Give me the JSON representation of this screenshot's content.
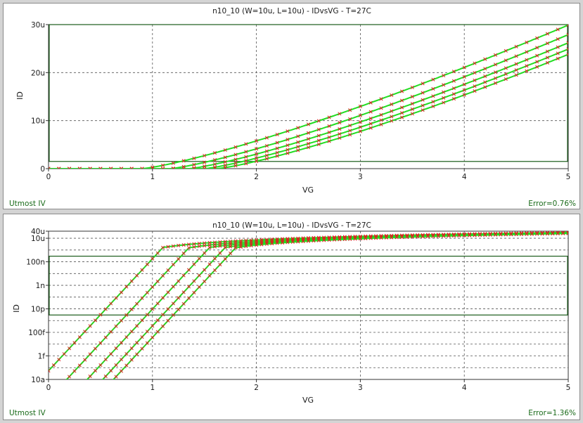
{
  "colors": {
    "fit_curve": "#22dd22",
    "measured_marker": "#dd2222",
    "frame": "#1a5c1a",
    "grid": "#555555",
    "corner_text": "#1a6b1a"
  },
  "chart_data": [
    {
      "type": "line",
      "title": "n10_10 (W=10u, L=10u) - IDvsVG - T=27C",
      "xlabel": "VG",
      "ylabel": "ID",
      "xlim": [
        0,
        5
      ],
      "ylim": [
        0,
        3e-05
      ],
      "y_scale": "linear",
      "x_ticks": [
        "0",
        "1",
        "2",
        "3",
        "4",
        "5"
      ],
      "y_ticks": [
        {
          "value": 0,
          "label": "0"
        },
        {
          "value": 1e-05,
          "label": "10u"
        },
        {
          "value": 2e-05,
          "label": "20u"
        },
        {
          "value": 3e-05,
          "label": "30u"
        }
      ],
      "grid": true,
      "left_label": "Utmost IV",
      "error_label": "Error=0.76%",
      "window": {
        "x": [
          0,
          5
        ],
        "y": [
          1.5e-06,
          3e-05
        ]
      },
      "series": [
        {
          "vth": 0.9,
          "end": 2.99e-05
        },
        {
          "vth": 1.17,
          "end": 2.79e-05
        },
        {
          "vth": 1.35,
          "end": 2.62e-05
        },
        {
          "vth": 1.5,
          "end": 2.49e-05
        },
        {
          "vth": 1.62,
          "end": 2.38e-05
        }
      ]
    },
    {
      "type": "line",
      "title": "n10_10 (W=10u, L=10u) - IDvsVG - T=27C",
      "xlabel": "VG",
      "ylabel": "ID",
      "xlim": [
        0,
        5
      ],
      "ylim": [
        1e-17,
        4e-05
      ],
      "y_scale": "log",
      "x_ticks": [
        "0",
        "1",
        "2",
        "3",
        "4",
        "5"
      ],
      "y_ticks": [
        {
          "value": 4e-05,
          "label": "40u"
        },
        {
          "value": 1e-05,
          "label": "10u"
        },
        {
          "value": 1e-07,
          "label": "100n"
        },
        {
          "value": 1e-09,
          "label": "1n"
        },
        {
          "value": 1e-11,
          "label": "10p"
        },
        {
          "value": 1e-13,
          "label": "100f"
        },
        {
          "value": 1e-15,
          "label": "1f"
        },
        {
          "value": 1e-17,
          "label": "10a"
        }
      ],
      "grid": true,
      "left_label": "Utmost IV",
      "error_label": "Error=1.36%",
      "window": {
        "x": [
          0,
          5
        ],
        "y": [
          3e-12,
          3e-07
        ]
      },
      "series": [
        {
          "vth": 0.9,
          "end": 2.99e-05,
          "id0": 3e-14,
          "vknee": 1.1
        },
        {
          "vth": 1.17,
          "end": 2.79e-05,
          "id0": 1e-17,
          "vknee": 1.35
        },
        {
          "vth": 1.35,
          "end": 2.62e-05,
          "id0": 1e-17,
          "vknee": 1.55
        },
        {
          "vth": 1.5,
          "end": 2.49e-05,
          "id0": 1e-17,
          "vknee": 1.7
        },
        {
          "vth": 1.62,
          "end": 2.38e-05,
          "id0": 1e-17,
          "vknee": 1.8
        }
      ]
    }
  ]
}
